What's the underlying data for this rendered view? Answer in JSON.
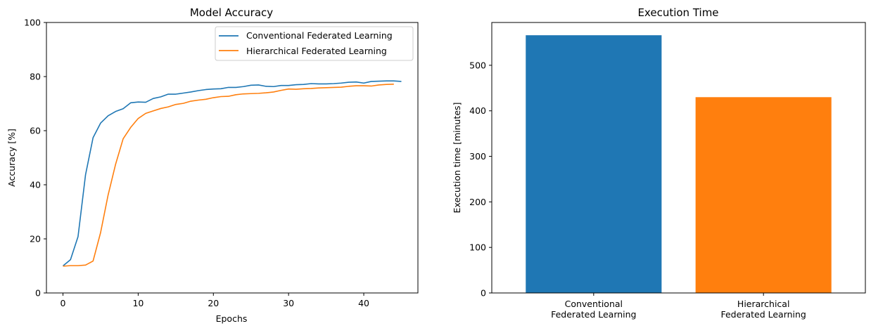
{
  "chart_data": [
    {
      "type": "line",
      "title": "Model Accuracy",
      "xlabel": "Epochs",
      "ylabel": "Accuracy [%]",
      "xlim": [
        -2.2,
        47.2
      ],
      "ylim": [
        0,
        100
      ],
      "xticks": [
        0,
        10,
        20,
        30,
        40
      ],
      "yticks": [
        0,
        20,
        40,
        60,
        80,
        100
      ],
      "grid": false,
      "legend_position": "top-right",
      "series": [
        {
          "name": "Conventional Federated Learning",
          "color": "#1f77b4",
          "x": [
            0,
            1,
            2,
            3,
            4,
            5,
            6,
            7,
            8,
            9,
            10,
            11,
            12,
            13,
            14,
            15,
            16,
            17,
            18,
            19,
            20,
            21,
            22,
            23,
            24,
            25,
            26,
            27,
            28,
            29,
            30,
            31,
            32,
            33,
            34,
            35,
            36,
            37,
            38,
            39,
            40,
            41,
            42,
            43,
            44,
            45
          ],
          "y": [
            10,
            12.3,
            20.8,
            43.7,
            57.4,
            62.8,
            65.5,
            67.1,
            68.1,
            70.3,
            70.6,
            70.5,
            71.9,
            72.5,
            73.5,
            73.5,
            73.9,
            74.3,
            74.8,
            75.2,
            75.4,
            75.5,
            76,
            76,
            76.3,
            76.8,
            76.9,
            76.4,
            76.3,
            76.7,
            76.7,
            77,
            77.1,
            77.4,
            77.3,
            77.3,
            77.4,
            77.6,
            77.9,
            78,
            77.6,
            78.2,
            78.3,
            78.4,
            78.4,
            78.2
          ]
        },
        {
          "name": "Hierarchical Federated Learning",
          "color": "#ff7f0e",
          "x": [
            0,
            1,
            2,
            3,
            4,
            5,
            6,
            7,
            8,
            9,
            10,
            11,
            12,
            13,
            14,
            15,
            16,
            17,
            18,
            19,
            20,
            21,
            22,
            23,
            24,
            25,
            26,
            27,
            28,
            29,
            30,
            31,
            32,
            33,
            34,
            35,
            36,
            37,
            38,
            39,
            40,
            41,
            42,
            43,
            44
          ],
          "y": [
            9.9,
            10.1,
            10.1,
            10.3,
            11.8,
            22.3,
            36.2,
            47.6,
            57,
            61.2,
            64.5,
            66.4,
            67.3,
            68.2,
            68.8,
            69.7,
            70.1,
            70.9,
            71.3,
            71.6,
            72.2,
            72.6,
            72.7,
            73.3,
            73.6,
            73.7,
            73.8,
            74,
            74.3,
            74.9,
            75.4,
            75.3,
            75.5,
            75.6,
            75.8,
            75.9,
            76,
            76.1,
            76.4,
            76.6,
            76.6,
            76.5,
            76.9,
            77.1,
            77.2
          ]
        }
      ]
    },
    {
      "type": "bar",
      "title": "Execution Time",
      "xlabel": "",
      "ylabel": "Execution time [minutes]",
      "categories": [
        "Conventional\nFederated Learning",
        "Hierarchical\nFederated Learning"
      ],
      "values": [
        566,
        430
      ],
      "colors": [
        "#1f77b4",
        "#ff7f0e"
      ],
      "ylim": [
        0,
        594
      ],
      "yticks": [
        0,
        100,
        200,
        300,
        400,
        500
      ],
      "grid": false
    }
  ]
}
